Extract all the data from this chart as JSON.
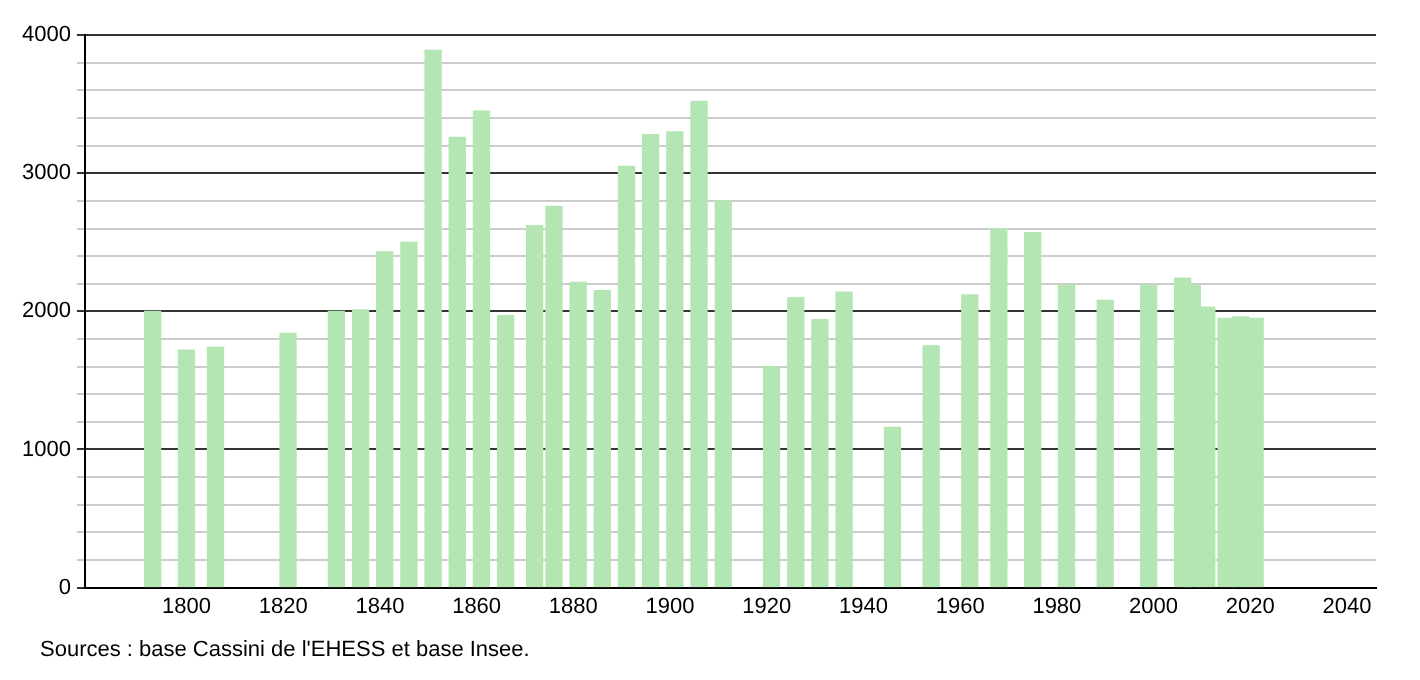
{
  "chart_data": {
    "type": "bar",
    "x": [
      1793,
      1800,
      1806,
      1821,
      1831,
      1836,
      1841,
      1846,
      1851,
      1856,
      1861,
      1866,
      1872,
      1876,
      1881,
      1886,
      1891,
      1896,
      1901,
      1906,
      1911,
      1921,
      1926,
      1931,
      1936,
      1946,
      1954,
      1962,
      1968,
      1975,
      1982,
      1990,
      1999,
      2006,
      2008,
      2011,
      2015,
      2018,
      2021
    ],
    "values": [
      2000,
      1720,
      1740,
      1840,
      2000,
      2010,
      2430,
      2500,
      3890,
      3260,
      3450,
      1970,
      2620,
      2760,
      2210,
      2150,
      3050,
      3280,
      3300,
      3520,
      2800,
      1600,
      2100,
      1940,
      2140,
      1160,
      1750,
      2120,
      2600,
      2570,
      2190,
      2080,
      2190,
      2240,
      2190,
      2030,
      1950,
      1960,
      1950
    ],
    "color": "#b3e6b3",
    "xlim": [
      1779,
      2046
    ],
    "xticks": [
      1800,
      1820,
      1840,
      1860,
      1880,
      1900,
      1920,
      1940,
      1960,
      1980,
      2000,
      2020,
      2040
    ],
    "ylim": [
      0,
      4000
    ],
    "yticks": [
      0,
      {
        "value": 200,
        "label": null
      },
      {
        "value": 400,
        "label": null
      },
      {
        "value": 600,
        "label": null
      },
      {
        "value": 800,
        "label": null
      },
      1000,
      {
        "value": 1200,
        "label": null
      },
      {
        "value": 1400,
        "label": null
      },
      {
        "value": 1600,
        "label": null
      },
      {
        "value": 1800,
        "label": null
      },
      2000,
      {
        "value": 2200,
        "label": null
      },
      {
        "value": 2400,
        "label": null
      },
      {
        "value": 2600,
        "label": null
      },
      {
        "value": 2800,
        "label": null
      },
      3000,
      {
        "value": 3200,
        "label": null
      },
      {
        "value": 3400,
        "label": null
      },
      {
        "value": 3600,
        "label": null
      },
      {
        "value": 3800,
        "label": null
      },
      4000
    ],
    "grid": "y",
    "annotations": [
      "Sources : base Cassini de l'EHESS et base Insee."
    ]
  }
}
